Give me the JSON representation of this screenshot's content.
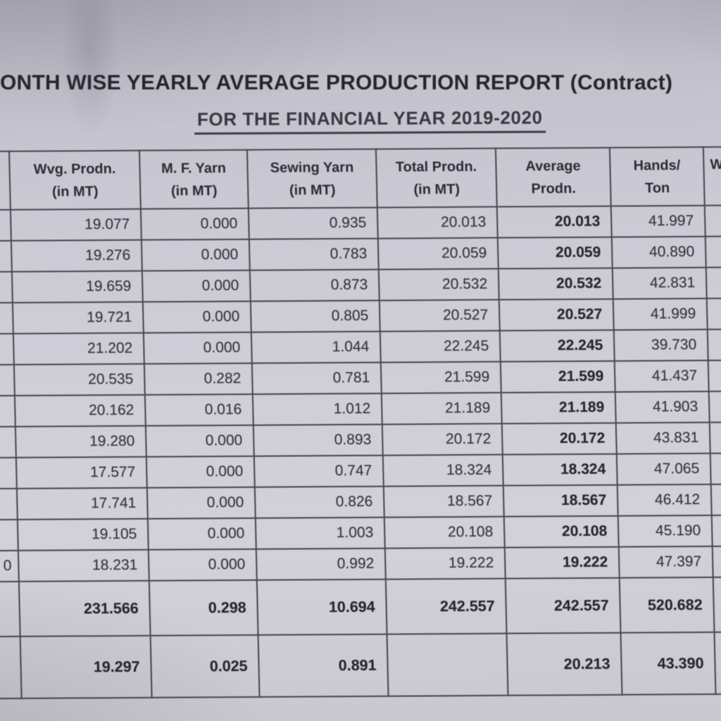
{
  "page": {
    "title": "ONTH WISE YEARLY AVERAGE PRODUCTION REPORT (Contract)",
    "subtitle": "FOR THE FINANCIAL YEAR 2019-2020"
  },
  "colors": {
    "paper": "#cfcdd6",
    "ink": "#32313b",
    "grid_line": "#45444e"
  },
  "table": {
    "columns": [
      {
        "key": "month",
        "header_line1": "",
        "header_line2": ""
      },
      {
        "key": "wvg",
        "header_line1": "Wvg. Prodn.",
        "header_line2": "(in MT)"
      },
      {
        "key": "mf",
        "header_line1": "M. F. Yarn",
        "header_line2": "(in MT)"
      },
      {
        "key": "sewing",
        "header_line1": "Sewing Yarn",
        "header_line2": "(in MT)"
      },
      {
        "key": "total",
        "header_line1": "Total Prodn.",
        "header_line2": "(in MT)"
      },
      {
        "key": "average",
        "header_line1": "Average",
        "header_line2": "Prodn."
      },
      {
        "key": "hands",
        "header_line1": "Hands/",
        "header_line2": "Ton"
      },
      {
        "key": "w",
        "header_line1": "W",
        "header_line2": ""
      }
    ],
    "rows": [
      {
        "month": "",
        "wvg": "19.077",
        "mf": "0.000",
        "sewing": "0.935",
        "total": "20.013",
        "average": "20.013",
        "hands": "41.997",
        "w": ""
      },
      {
        "month": "",
        "wvg": "19.276",
        "mf": "0.000",
        "sewing": "0.783",
        "total": "20.059",
        "average": "20.059",
        "hands": "40.890",
        "w": ""
      },
      {
        "month": "",
        "wvg": "19.659",
        "mf": "0.000",
        "sewing": "0.873",
        "total": "20.532",
        "average": "20.532",
        "hands": "42.831",
        "w": ""
      },
      {
        "month": "",
        "wvg": "19.721",
        "mf": "0.000",
        "sewing": "0.805",
        "total": "20.527",
        "average": "20.527",
        "hands": "41.999",
        "w": ""
      },
      {
        "month": "",
        "wvg": "21.202",
        "mf": "0.000",
        "sewing": "1.044",
        "total": "22.245",
        "average": "22.245",
        "hands": "39.730",
        "w": ""
      },
      {
        "month": "",
        "wvg": "20.535",
        "mf": "0.282",
        "sewing": "0.781",
        "total": "21.599",
        "average": "21.599",
        "hands": "41.437",
        "w": ""
      },
      {
        "month": "",
        "wvg": "20.162",
        "mf": "0.016",
        "sewing": "1.012",
        "total": "21.189",
        "average": "21.189",
        "hands": "41.903",
        "w": ""
      },
      {
        "month": "",
        "wvg": "19.280",
        "mf": "0.000",
        "sewing": "0.893",
        "total": "20.172",
        "average": "20.172",
        "hands": "43.831",
        "w": ""
      },
      {
        "month": "",
        "wvg": "17.577",
        "mf": "0.000",
        "sewing": "0.747",
        "total": "18.324",
        "average": "18.324",
        "hands": "47.065",
        "w": ""
      },
      {
        "month": "",
        "wvg": "17.741",
        "mf": "0.000",
        "sewing": "0.826",
        "total": "18.567",
        "average": "18.567",
        "hands": "46.412",
        "w": ""
      },
      {
        "month": "",
        "wvg": "19.105",
        "mf": "0.000",
        "sewing": "1.003",
        "total": "20.108",
        "average": "20.108",
        "hands": "45.190",
        "w": ""
      },
      {
        "month": "0",
        "wvg": "18.231",
        "mf": "0.000",
        "sewing": "0.992",
        "total": "19.222",
        "average": "19.222",
        "hands": "47.397",
        "w": ""
      }
    ],
    "totals": {
      "month": "",
      "wvg": "231.566",
      "mf": "0.298",
      "sewing": "10.694",
      "total": "242.557",
      "average": "242.557",
      "hands": "520.682",
      "w": ""
    },
    "average": {
      "month": "",
      "wvg": "19.297",
      "mf": "0.025",
      "sewing": "0.891",
      "total": "",
      "average": "20.213",
      "hands": "43.390",
      "w": ""
    }
  }
}
